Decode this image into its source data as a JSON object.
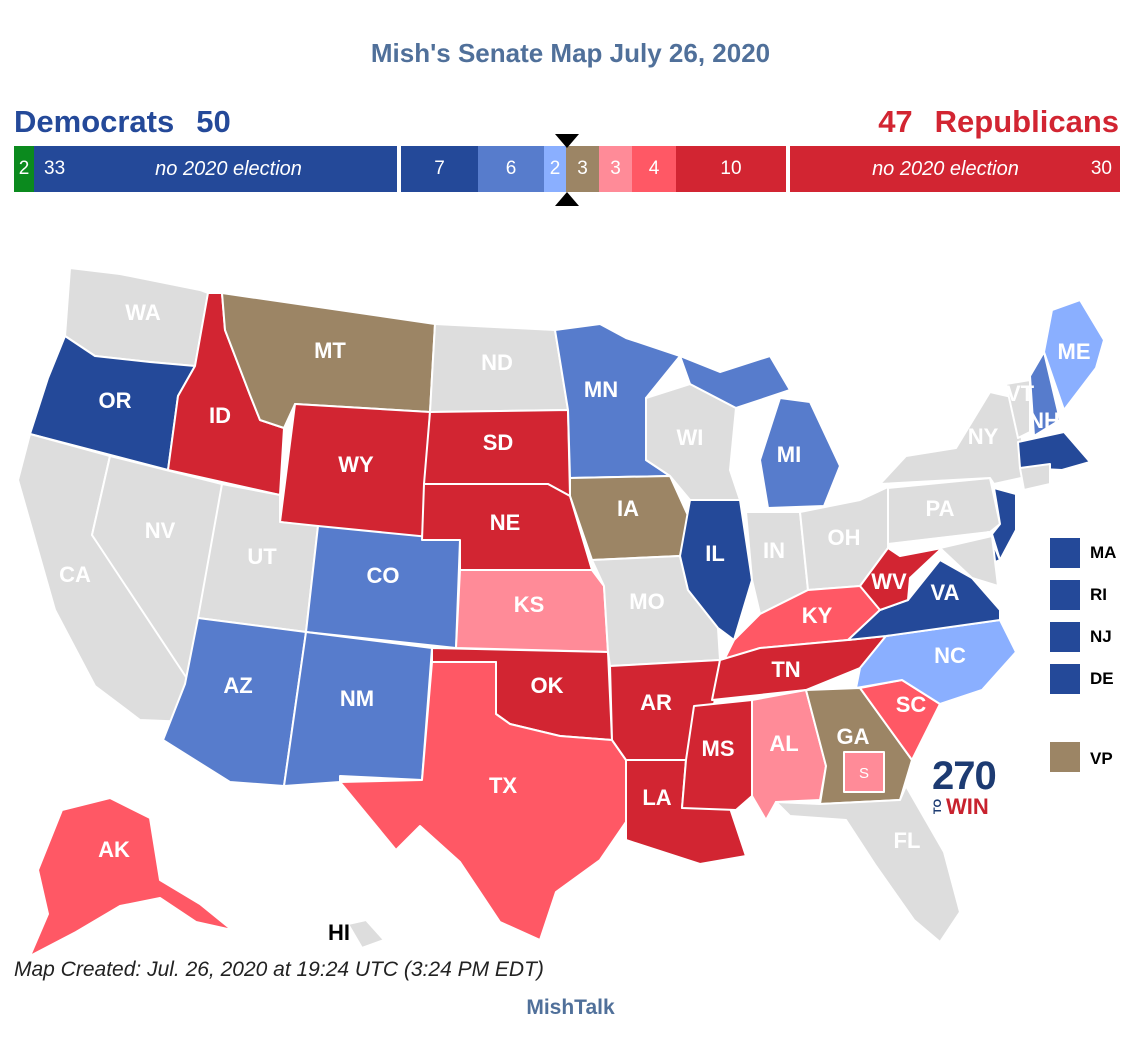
{
  "title": "Mish's Senate Map July 26, 2020",
  "dem": {
    "label": "Democrats",
    "total": "50"
  },
  "rep": {
    "label": "Republicans",
    "total": "47"
  },
  "bar": {
    "independent": "2",
    "dem_safe_no_election_count": "33",
    "dem_no_election_label": "no 2020 election",
    "dem_safe": "7",
    "dem_likely": "6",
    "dem_lean": "2",
    "tossup": "3",
    "rep_lean": "3",
    "rep_likely": "4",
    "rep_safe": "10",
    "rep_no_election_label": "no 2020 election",
    "rep_no_election_count": "30"
  },
  "colors": {
    "dem_safe": "#244999",
    "dem_likely": "#577ccc",
    "dem_lean": "#8aafff",
    "tossup": "#9c8565",
    "rep_lean": "#ff8b98",
    "rep_likely": "#ff5865",
    "rep_safe": "#d22532",
    "independent": "#0b8a1e",
    "no_election": "#dddddd"
  },
  "map_labels": {
    "WA": "WA",
    "OR": "OR",
    "CA": "CA",
    "NV": "NV",
    "ID": "ID",
    "MT": "MT",
    "WY": "WY",
    "UT": "UT",
    "AZ": "AZ",
    "CO": "CO",
    "NM": "NM",
    "ND": "ND",
    "SD": "SD",
    "NE": "NE",
    "KS": "KS",
    "OK": "OK",
    "TX": "TX",
    "MN": "MN",
    "IA": "IA",
    "MO": "MO",
    "AR": "AR",
    "LA": "LA",
    "WI": "WI",
    "IL": "IL",
    "MI": "MI",
    "IN": "IN",
    "OH": "OH",
    "KY": "KY",
    "TN": "TN",
    "MS": "MS",
    "AL": "AL",
    "GA": "GA",
    "FL": "FL",
    "SC": "SC",
    "NC": "NC",
    "VA": "VA",
    "WV": "WV",
    "PA": "PA",
    "NY": "NY",
    "VT": "VT",
    "NH": "NH",
    "ME": "ME",
    "AK": "AK",
    "HI": "HI",
    "GA_special": "S"
  },
  "legend": [
    {
      "label": "MA",
      "color": "#244999"
    },
    {
      "label": "RI",
      "color": "#244999"
    },
    {
      "label": "NJ",
      "color": "#244999"
    },
    {
      "label": "DE",
      "color": "#244999"
    },
    {
      "label": "VP",
      "color": "#9c8565"
    }
  ],
  "logo": {
    "number": "270",
    "to": "TO",
    "win": "WIN"
  },
  "footer": "Map Created: Jul. 26, 2020 at 19:24 UTC (3:24 PM EDT)",
  "credit": "MishTalk"
}
